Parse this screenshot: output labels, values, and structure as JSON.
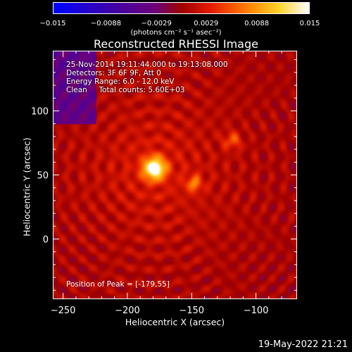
{
  "chart_data": {
    "type": "heatmap",
    "title": "Reconstructed RHESSI Image",
    "xlabel": "Heliocentric X (arcsec)",
    "ylabel": "Heliocentric Y (arcsec)",
    "xlim": [
      -258,
      -68
    ],
    "ylim": [
      -47,
      147
    ],
    "x_ticks": [
      -250,
      -200,
      -150,
      -100
    ],
    "x_tick_labels": [
      "−250",
      "−200",
      "−150",
      "−100"
    ],
    "y_ticks": [
      0,
      50,
      100
    ],
    "y_tick_labels": [
      "0",
      "50",
      "100"
    ],
    "colorbar": {
      "range": [
        -0.015,
        0.015
      ],
      "ticks": [
        -0.015,
        -0.0088,
        -0.0029,
        0.0029,
        0.0088,
        0.015
      ],
      "tick_labels": [
        "−0.015",
        "−0.0088",
        "−0.0029",
        "0.0029",
        "0.0088",
        "0.015"
      ],
      "unit_label": "(photons cm⁻² s⁻¹ asec⁻²)"
    },
    "sources": [
      {
        "x": -179,
        "y": 55,
        "amp": 0.015
      },
      {
        "x": -148,
        "y": 43,
        "amp": 0.006
      },
      {
        "x": -118,
        "y": 77,
        "amp": 0.005
      }
    ],
    "peak": {
      "x": -179,
      "y": 55
    }
  },
  "info": {
    "time": "25-Nov-2014 19:11:44.000 to 19:13:08.000",
    "detectors": "Detectors: 3F 6F 9F, Att 0",
    "energy": "Energy Range: 6.0 - 12.0 keV",
    "method": "Clean     Total counts: 5.60E+03",
    "peak_text": "Position of Peak = [-179,55]"
  },
  "footer": {
    "timestamp": "19-May-2022 21:21"
  }
}
